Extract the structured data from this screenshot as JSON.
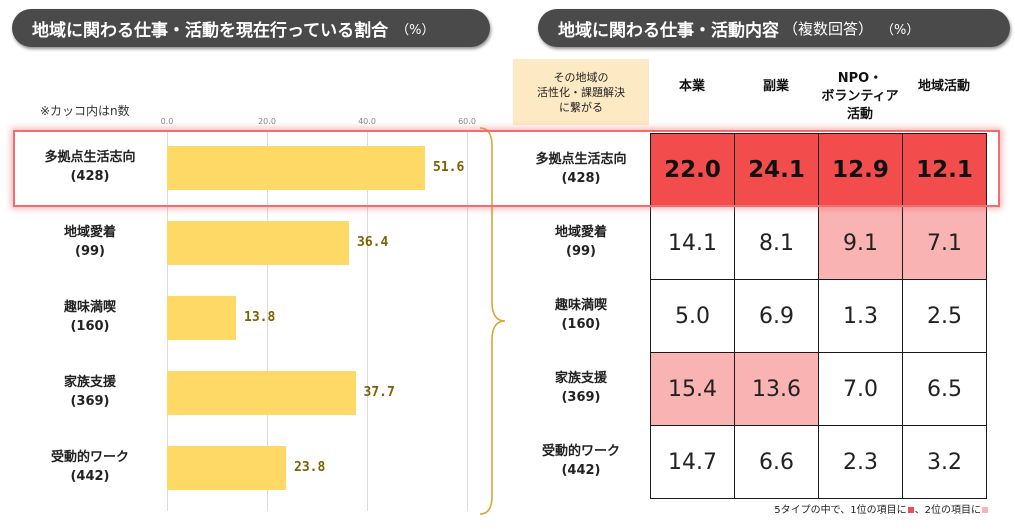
{
  "left_panel": {
    "title": "地域に関わる仕事・活動を現在行っている割合",
    "unit": "（%）",
    "note": "※カッコ内はn数"
  },
  "right_panel": {
    "title": "地域に関わる仕事・活動内容",
    "title_extra": "（複数回答）",
    "unit": "（%）",
    "header_box": [
      "その地域の",
      "活性化・課題解決",
      "に繋がる"
    ],
    "columns": [
      [
        "本業"
      ],
      [
        "副業"
      ],
      [
        "NPO・",
        "ボランティア",
        "活動"
      ],
      [
        "地域活動"
      ]
    ],
    "footnote_text1": "5タイプの中で、1位の項目に",
    "footnote_sep": "、2位の項目に",
    "rank1_color": "#f24c4c",
    "rank2_color": "#f9b3b3"
  },
  "chart_data": [
    {
      "type": "bar",
      "orientation": "horizontal",
      "categories": [
        "多拠点生活志向",
        "地域愛着",
        "趣味満喫",
        "家族支援",
        "受動的ワーク"
      ],
      "category_n": [
        "(428)",
        "(99)",
        "(160)",
        "(369)",
        "(442)"
      ],
      "values": [
        51.6,
        36.4,
        13.8,
        37.7,
        23.8
      ],
      "value_labels": [
        "51.6",
        "36.4",
        "13.8",
        "37.7",
        "23.8"
      ],
      "xlim": [
        0,
        60
      ],
      "xticks": [
        "0.0",
        "20.0",
        "40.0",
        "60.0"
      ],
      "grid": true,
      "bar_color": "#ffd966"
    },
    {
      "type": "table",
      "rows": [
        "多拠点生活志向",
        "地域愛着",
        "趣味満喫",
        "家族支援",
        "受動的ワーク"
      ],
      "row_n": [
        "(428)",
        "(99)",
        "(160)",
        "(369)",
        "(442)"
      ],
      "columns": [
        "本業",
        "副業",
        "NPO・ボランティア活動",
        "地域活動"
      ],
      "values": [
        [
          "22.0",
          "24.1",
          "12.9",
          "12.1"
        ],
        [
          "14.1",
          "8.1",
          "9.1",
          "7.1"
        ],
        [
          "5.0",
          "6.9",
          "1.3",
          "2.5"
        ],
        [
          "15.4",
          "13.6",
          "7.0",
          "6.5"
        ],
        [
          "14.7",
          "6.6",
          "2.3",
          "3.2"
        ]
      ],
      "rank": [
        [
          1,
          1,
          1,
          1
        ],
        [
          0,
          0,
          2,
          2
        ],
        [
          0,
          0,
          0,
          0
        ],
        [
          2,
          2,
          0,
          0
        ],
        [
          0,
          0,
          0,
          0
        ]
      ]
    }
  ]
}
